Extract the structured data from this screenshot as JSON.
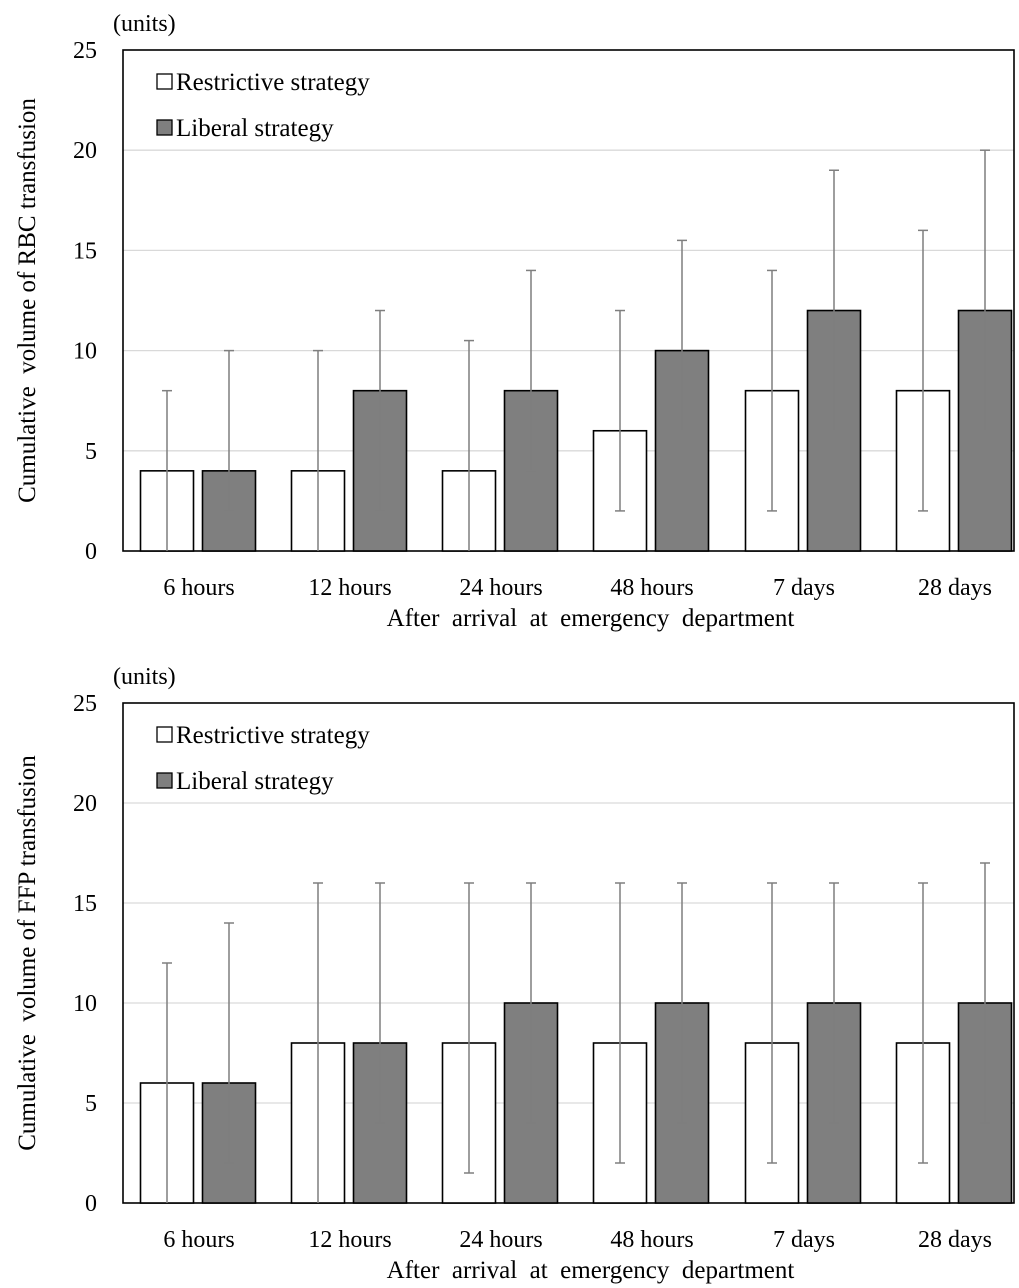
{
  "chart_data": [
    {
      "type": "bar",
      "units_label": "(units)",
      "ylabel": "Cumulative  volume of RBC transfusion",
      "xlabel": "After  arrival  at  emergency  department",
      "ylim": [
        0,
        25
      ],
      "yticks": [
        0,
        5,
        10,
        15,
        20,
        25
      ],
      "grid": true,
      "legend_position": "top-left",
      "categories": [
        "6 hours",
        "12 hours",
        "24 hours",
        "48 hours",
        "7 days",
        "28 days"
      ],
      "series": [
        {
          "name": "Restrictive strategy",
          "color": "#ffffff",
          "values": [
            4,
            4,
            4,
            6,
            8,
            8
          ],
          "error_low": [
            0,
            0,
            0,
            2,
            2,
            2
          ],
          "error_high": [
            8,
            10,
            10.5,
            12,
            14,
            16
          ]
        },
        {
          "name": "Liberal strategy",
          "color": "#7f7f7f",
          "values": [
            4,
            8,
            8,
            10,
            12,
            12
          ],
          "error_low": [
            2,
            2,
            4,
            6,
            6,
            6
          ],
          "error_high": [
            10,
            12,
            14,
            15.5,
            19,
            20
          ]
        }
      ]
    },
    {
      "type": "bar",
      "units_label": "(units)",
      "ylabel": "Cumulative  volume of FFP transfusion",
      "xlabel": "After  arrival  at  emergency  department",
      "ylim": [
        0,
        25
      ],
      "yticks": [
        0,
        5,
        10,
        15,
        20,
        25
      ],
      "grid": true,
      "legend_position": "top-left",
      "categories": [
        "6 hours",
        "12 hours",
        "24 hours",
        "48 hours",
        "7 days",
        "28 days"
      ],
      "series": [
        {
          "name": "Restrictive strategy",
          "color": "#ffffff",
          "values": [
            6,
            8,
            8,
            8,
            8,
            8
          ],
          "error_low": [
            0,
            0,
            1.5,
            2,
            2,
            2
          ],
          "error_high": [
            12,
            16,
            16,
            16,
            16,
            16
          ]
        },
        {
          "name": "Liberal strategy",
          "color": "#7f7f7f",
          "values": [
            6,
            8,
            10,
            10,
            10,
            10
          ],
          "error_low": [
            2,
            4,
            4,
            4,
            4,
            4
          ],
          "error_high": [
            14,
            16,
            16,
            16,
            16,
            17
          ]
        }
      ]
    }
  ]
}
